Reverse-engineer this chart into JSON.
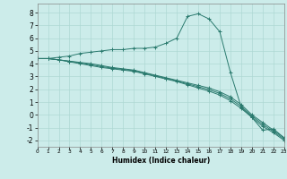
{
  "title": "",
  "xlabel": "Humidex (Indice chaleur)",
  "bg_color": "#ccecea",
  "grid_color": "#aed8d4",
  "line_color": "#2a7a6e",
  "x_values": [
    0,
    1,
    2,
    3,
    4,
    5,
    6,
    7,
    8,
    9,
    10,
    11,
    12,
    13,
    14,
    15,
    16,
    17,
    18,
    19,
    20,
    21,
    22,
    23
  ],
  "series1": [
    4.4,
    4.4,
    4.5,
    4.6,
    4.8,
    4.9,
    5.0,
    5.1,
    5.1,
    5.2,
    5.2,
    5.3,
    5.6,
    6.0,
    7.7,
    7.9,
    7.5,
    6.5,
    3.3,
    0.6,
    -0.2,
    -1.2,
    -1.1,
    -1.8
  ],
  "series2": [
    4.4,
    4.4,
    4.3,
    4.2,
    4.1,
    4.0,
    3.85,
    3.7,
    3.6,
    3.5,
    3.3,
    3.1,
    2.9,
    2.7,
    2.5,
    2.3,
    2.1,
    1.8,
    1.4,
    0.8,
    0.0,
    -0.6,
    -1.2,
    -1.8
  ],
  "series3": [
    4.4,
    4.4,
    4.3,
    4.15,
    4.0,
    3.85,
    3.7,
    3.6,
    3.5,
    3.4,
    3.2,
    3.0,
    2.8,
    2.6,
    2.35,
    2.1,
    1.85,
    1.55,
    1.1,
    0.5,
    -0.2,
    -0.9,
    -1.4,
    -2.0
  ],
  "series4": [
    4.4,
    4.4,
    4.3,
    4.18,
    4.05,
    3.92,
    3.77,
    3.65,
    3.55,
    3.45,
    3.25,
    3.05,
    2.85,
    2.65,
    2.42,
    2.2,
    1.97,
    1.67,
    1.25,
    0.65,
    -0.1,
    -0.75,
    -1.3,
    -1.9
  ],
  "xlim": [
    0,
    23
  ],
  "ylim": [
    -2.5,
    8.7
  ],
  "yticks": [
    -2,
    -1,
    0,
    1,
    2,
    3,
    4,
    5,
    6,
    7,
    8
  ],
  "xticks": [
    0,
    1,
    2,
    3,
    4,
    5,
    6,
    7,
    8,
    9,
    10,
    11,
    12,
    13,
    14,
    15,
    16,
    17,
    18,
    19,
    20,
    21,
    22,
    23
  ]
}
